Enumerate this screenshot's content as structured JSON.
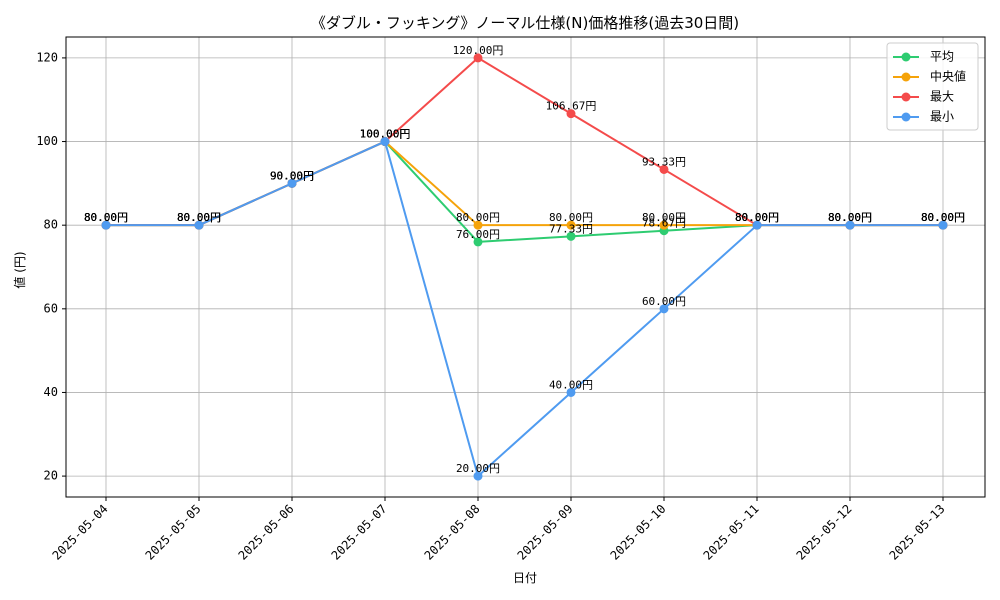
{
  "chart_data": {
    "type": "line",
    "title": "《ダブル・フッキング》ノーマル仕様(N)価格推移(過去30日間)",
    "xlabel": "日付",
    "ylabel": "値 (円)",
    "ylim": [
      15,
      125
    ],
    "yticks": [
      "20",
      "40",
      "60",
      "80",
      "100",
      "120"
    ],
    "grid": true,
    "legend_position": "top-right",
    "label_suffix": "円",
    "categories": [
      "2025-05-04",
      "2025-05-05",
      "2025-05-06",
      "2025-05-07",
      "2025-05-08",
      "2025-05-09",
      "2025-05-10",
      "2025-05-11",
      "2025-05-12",
      "2025-05-13"
    ],
    "series": [
      {
        "name": "平均",
        "color": "#2ecc71",
        "values": [
          80,
          80,
          90,
          100,
          76,
          77.33,
          78.67,
          80,
          80,
          80
        ],
        "labels": [
          "80.00円",
          "80.00円",
          "90.00円",
          "100.00円",
          "76.00円",
          "77.33円",
          "78.67円",
          "80.00円",
          "80.00円",
          "80.00円"
        ]
      },
      {
        "name": "中央値",
        "color": "#f5a30a",
        "values": [
          80,
          80,
          90,
          100,
          80,
          80,
          80,
          80,
          80,
          80
        ],
        "labels": [
          "80.00円",
          "80.00円",
          "90.00円",
          "100.00円",
          "80.00円",
          "80.00円",
          "80.00円",
          "80.00円",
          "80.00円",
          "80.00円"
        ]
      },
      {
        "name": "最大",
        "color": "#f44b4b",
        "values": [
          80,
          80,
          90,
          100,
          120,
          106.67,
          93.33,
          80,
          80,
          80
        ],
        "labels": [
          "80.00円",
          "80.00円",
          "90.00円",
          "100.00円",
          "120.00円",
          "106.67円",
          "93.33円",
          "80.00円",
          "80.00円",
          "80.00円"
        ]
      },
      {
        "name": "最小",
        "color": "#4f9bf0",
        "values": [
          80,
          80,
          90,
          100,
          20,
          40,
          60,
          80,
          80,
          80
        ],
        "labels": [
          "80.00円",
          "80.00円",
          "90.00円",
          "100.00円",
          "20.00円",
          "40.00円",
          "60.00円",
          "80.00円",
          "80.00円",
          "80.00円"
        ]
      }
    ]
  }
}
